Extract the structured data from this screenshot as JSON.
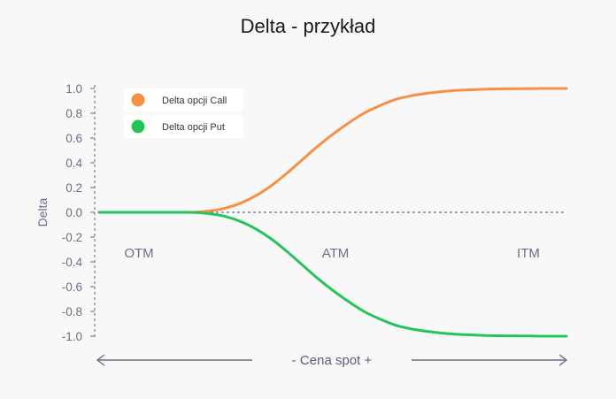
{
  "chart_data": {
    "type": "line",
    "title": "Delta - przykład",
    "ylabel": "Delta",
    "xlabel": "- Cena spot +",
    "ylim": [
      -1.0,
      1.0
    ],
    "yticks": [
      "1.0",
      "0.8",
      "0.6",
      "0.4",
      "0.2",
      "0.0",
      "-0.2",
      "-0.4",
      "-0.6",
      "-0.8",
      "-1.0"
    ],
    "ytick_values": [
      1.0,
      0.8,
      0.6,
      0.4,
      0.2,
      0.0,
      -0.2,
      -0.4,
      -0.6,
      -0.8,
      -1.0
    ],
    "regions": [
      "OTM",
      "ATM",
      "ITM"
    ],
    "legend_position": "top-left",
    "grid": false,
    "zero_line": "dashed",
    "series": [
      {
        "name": "Delta opcji Call",
        "color": "#f78f45",
        "values": [
          0.0,
          0.0,
          0.0,
          0.0,
          0.0,
          0.0,
          0.0,
          0.01,
          0.03,
          0.07,
          0.13,
          0.21,
          0.31,
          0.42,
          0.53,
          0.63,
          0.72,
          0.8,
          0.86,
          0.91,
          0.94,
          0.96,
          0.975,
          0.985,
          0.99,
          0.995,
          0.997,
          0.998,
          0.999,
          1.0,
          1.0
        ]
      },
      {
        "name": "Delta opcji Put",
        "color": "#26c35a",
        "values": [
          0.0,
          0.0,
          0.0,
          0.0,
          0.0,
          0.0,
          0.0,
          -0.01,
          -0.03,
          -0.07,
          -0.13,
          -0.21,
          -0.31,
          -0.42,
          -0.53,
          -0.63,
          -0.72,
          -0.8,
          -0.86,
          -0.91,
          -0.94,
          -0.96,
          -0.975,
          -0.985,
          -0.99,
          -0.995,
          -0.997,
          -0.998,
          -0.999,
          -1.0,
          -1.0
        ]
      }
    ]
  }
}
